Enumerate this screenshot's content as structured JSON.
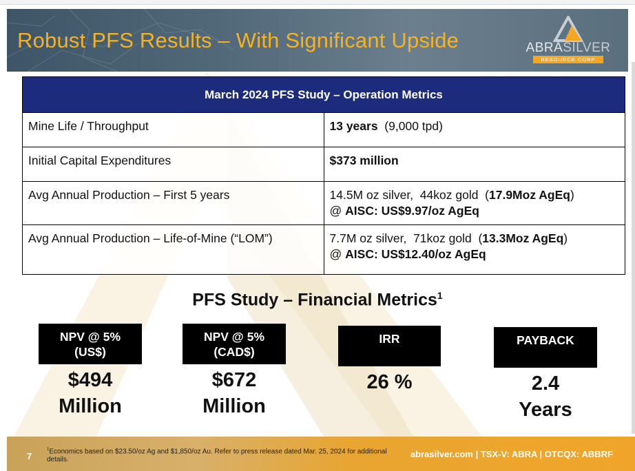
{
  "header": {
    "title": "Robust PFS Results – With Significant Upside",
    "logo_word_a": "ABRA",
    "logo_word_b": "SILVER",
    "logo_sub": "RESOURCE CORP"
  },
  "ops_table": {
    "heading": "March 2024 PFS Study – Operation Metrics",
    "rows": [
      {
        "label": "Mine Life / Throughput",
        "v1_bold": "13 years",
        "v1_rest": "  (9,000 tpd)",
        "v2_pre": "",
        "v2_bold": ""
      },
      {
        "label": "Initial Capital Expenditures",
        "v1_bold": "$373 million",
        "v1_rest": "",
        "v2_pre": "",
        "v2_bold": ""
      },
      {
        "label": "Avg Annual Production – First 5 years",
        "v1_pre": "14.5M oz silver,  44koz gold  (",
        "v1_bold": "17.9Moz AgEq",
        "v1_post": ")",
        "v2_pre": "@ ",
        "v2_bold": "AISC: US$9.97/oz AgEq"
      },
      {
        "label": "Avg Annual Production – Life-of-Mine (“LOM”)",
        "v1_pre": "7.7M oz silver,  71koz gold  (",
        "v1_bold": "13.3Moz AgEq",
        "v1_post": ")",
        "v2_pre": "@ ",
        "v2_bold": "AISC: US$12.40/oz AgEq"
      }
    ]
  },
  "financial": {
    "title": "PFS Study – Financial Metrics",
    "title_sup": "1",
    "metrics": [
      {
        "label_line1": "NPV @ 5%",
        "label_line2": "(US$)",
        "value_line1": "$494",
        "value_line2": "Million"
      },
      {
        "label_line1": "NPV @ 5%",
        "label_line2": "(CAD$)",
        "value_line1": "$672",
        "value_line2": "Million"
      },
      {
        "label_line1": "IRR",
        "label_line2": "",
        "value_line1": "26 %",
        "value_line2": ""
      },
      {
        "label_line1": "PAYBACK",
        "label_line2": "",
        "value_line1": "2.4",
        "value_line2": "Years"
      }
    ]
  },
  "footer": {
    "page_number": "7",
    "footnote_sup": "1",
    "footnote": "Economics based on $23.50/oz Ag and $1,850/oz Au.  Refer to press release dated Mar. 25, 2024 for additional details.",
    "contact": "abrasilver.com  |  TSX-V: ABRA  |  OTCQX: ABBRF"
  },
  "colors": {
    "title": "#f5b223",
    "table_header": "#1c2b7b",
    "accent": "#f0a52a"
  }
}
